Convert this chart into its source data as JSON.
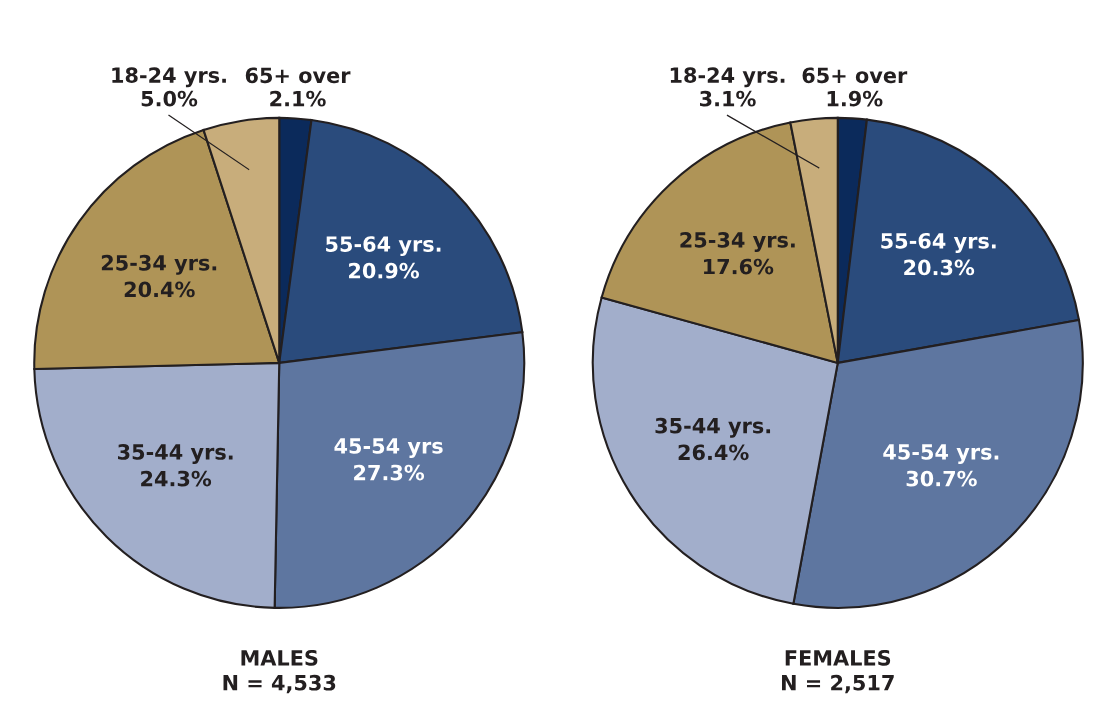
{
  "chart_data": [
    {
      "type": "pie",
      "title": "MALES",
      "subtitle": "N = 4,533",
      "categories": [
        "65+ over",
        "55-64 yrs.",
        "45-54 yrs",
        "35-44 yrs.",
        "25-34 yrs.",
        "18-24 yrs."
      ],
      "values": [
        2.1,
        20.9,
        27.3,
        24.3,
        20.4,
        5.0
      ],
      "value_labels": [
        "2.1%",
        "20.9%",
        "27.3%",
        "24.3%",
        "20.4%",
        "5.0%"
      ],
      "colors": [
        "#0b2a5b",
        "#2a4b7c",
        "#5e76a0",
        "#a2aecb",
        "#af9457",
        "#c8ad7b"
      ]
    },
    {
      "type": "pie",
      "title": "FEMALES",
      "subtitle": "N = 2,517",
      "categories": [
        "65+ over",
        "55-64 yrs.",
        "45-54 yrs.",
        "35-44 yrs.",
        "25-34 yrs.",
        "18-24 yrs."
      ],
      "values": [
        1.9,
        20.3,
        30.7,
        26.4,
        17.6,
        3.1
      ],
      "value_labels": [
        "1.9%",
        "20.3%",
        "30.7%",
        "26.4%",
        "17.6%",
        "3.1%"
      ],
      "colors": [
        "#0b2a5b",
        "#2a4b7c",
        "#5e76a0",
        "#a2aecb",
        "#af9457",
        "#c8ad7b"
      ]
    }
  ]
}
